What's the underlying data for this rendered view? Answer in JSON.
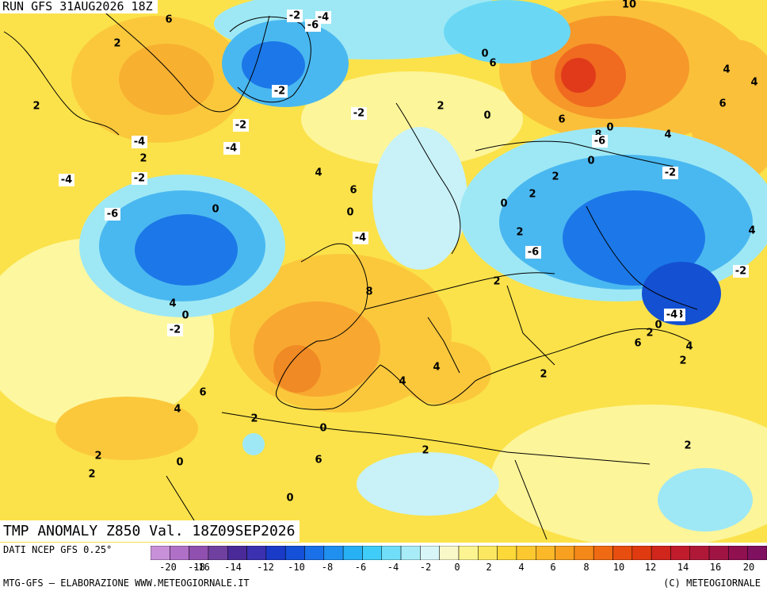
{
  "header": {
    "run_label": "RUN GFS 31AUG2026 18Z"
  },
  "map": {
    "title": "TMP ANOMALY Z850 Val. 18Z09SEP2026",
    "contour_labels": [
      "6",
      "-2",
      "-4",
      "-6",
      "10",
      "2",
      "-2",
      "0",
      "6",
      "4",
      "2",
      "-2",
      "2",
      "0",
      "-2",
      "6",
      "4",
      "-2",
      "-4",
      "2",
      "6",
      "8",
      "0",
      "4",
      "-6",
      "-4",
      "-2",
      "-4",
      "4",
      "2",
      "-2",
      "0",
      "-6",
      "0",
      "2",
      "0",
      "0",
      "6",
      "2",
      "4",
      "-4",
      "-6",
      "2",
      "-2",
      "8",
      "4",
      "-8",
      "-4",
      "0",
      "-2",
      "0",
      "2",
      "4",
      "6",
      "2",
      "4",
      "2",
      "4",
      "6",
      "4",
      "2",
      "0",
      "2",
      "0",
      "6",
      "2",
      "2",
      "2",
      "0"
    ],
    "colors": {
      "sea_cold_dark": "#1450d2",
      "cold": "#2fa0f0",
      "cool": "#9ee8f5",
      "neutral_light": "#fdfcc0",
      "warm_light": "#fbe650",
      "warm": "#fbc33a",
      "warmer": "#f6a030",
      "hot": "#f07020",
      "hottest": "#e03a1a",
      "coastline": "#000000"
    }
  },
  "legend": {
    "source_label": "DATI NCEP GFS 0.25°",
    "ticks": [
      "-20",
      "-18",
      "-16",
      "-14",
      "-12",
      "-10",
      "-8",
      "-6",
      "-4",
      "-2",
      "0",
      "2",
      "4",
      "6",
      "8",
      "10",
      "12",
      "14",
      "16",
      "20"
    ],
    "swatch_colors": [
      "#c890d8",
      "#b070c8",
      "#9050b0",
      "#7040a0",
      "#4a2a98",
      "#3a30b0",
      "#1a3ac8",
      "#1450d8",
      "#1a70e8",
      "#2090f0",
      "#28b0f4",
      "#40ccf8",
      "#70def8",
      "#a8ecf8",
      "#d8f6f8",
      "#f8f8c8",
      "#fcf490",
      "#fce860",
      "#fcd838",
      "#fcc830",
      "#fbb828",
      "#f8a020",
      "#f48818",
      "#f06a14",
      "#e84e10",
      "#e03a10",
      "#d0261c",
      "#c01c2c",
      "#b01838",
      "#a01444",
      "#901050",
      "#801060"
    ],
    "credit_left": "MTG-GFS — ELABORAZIONE WWW.METEOGIORNALE.IT",
    "credit_right": "(C) METEOGIORNALE"
  }
}
